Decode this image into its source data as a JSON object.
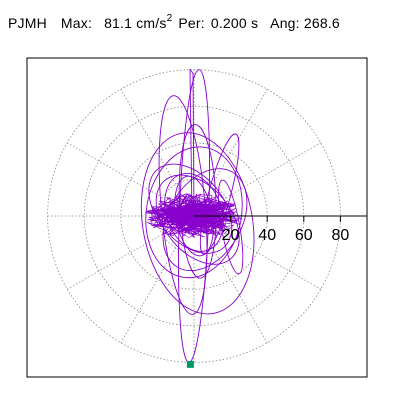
{
  "header": {
    "station": "PJMH",
    "max_label": "Max:",
    "max_value": "81.1",
    "max_unit": "cm/s",
    "max_unit_exp": "2",
    "per_label": "Per:",
    "per_value": "0.200 s",
    "ang_label": "Ang:",
    "ang_value": "268.6"
  },
  "chart_data": {
    "type": "line",
    "title": "PJMH  Max: 81.1 cm/s2  Per: 0.200 s  Ang: 268.6",
    "description_unit": "cm/s2",
    "polar": true,
    "radial_ticks": [
      "20",
      "40",
      "60",
      "80"
    ],
    "radial_tick_values": [
      20,
      40,
      60,
      80
    ],
    "rmax": 85,
    "angular_grid_step_deg": 30,
    "grid": true,
    "peak_marker": {
      "angle_deg": 268.6,
      "radius": 81.1
    },
    "series": [
      {
        "color": "#8800cc"
      }
    ],
    "marker_color": "#009966"
  }
}
